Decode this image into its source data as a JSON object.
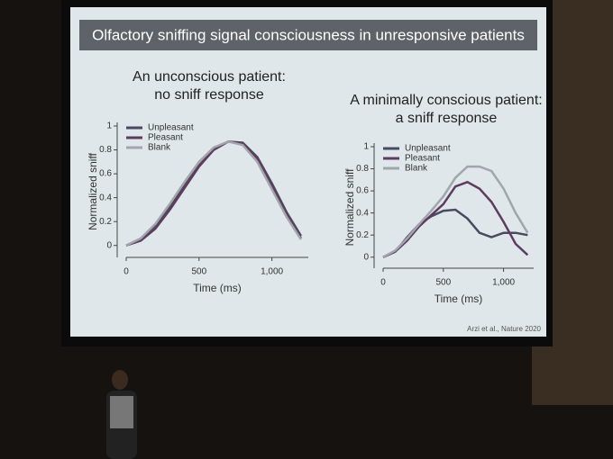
{
  "slide": {
    "title": "Olfactory sniffing signal consciousness in unresponsive patients",
    "citation": "Arzi et al., Nature 2020"
  },
  "chart_data": [
    {
      "type": "line",
      "title": [
        "An unconscious patient:",
        "no sniff response"
      ],
      "x_label": "Time (ms)",
      "y_label": "Normalized sniff",
      "x": [
        0,
        100,
        200,
        300,
        400,
        500,
        600,
        700,
        800,
        900,
        1000,
        1100,
        1200
      ],
      "series": [
        {
          "name": "Unpleasant",
          "color": "#4a4a5e",
          "values": [
            0,
            0.05,
            0.16,
            0.32,
            0.5,
            0.67,
            0.8,
            0.87,
            0.86,
            0.74,
            0.52,
            0.28,
            0.08
          ]
        },
        {
          "name": "Pleasant",
          "color": "#5e3c60",
          "values": [
            0,
            0.04,
            0.14,
            0.3,
            0.48,
            0.66,
            0.8,
            0.87,
            0.85,
            0.73,
            0.5,
            0.26,
            0.06
          ]
        },
        {
          "name": "Blank",
          "color": "#a3a5ad",
          "values": [
            0,
            0.06,
            0.18,
            0.35,
            0.53,
            0.7,
            0.82,
            0.87,
            0.84,
            0.7,
            0.47,
            0.24,
            0.05
          ]
        }
      ],
      "xlim": [
        0,
        1250
      ],
      "ylim": [
        -0.1,
        1
      ],
      "xticks": [
        0,
        500,
        {
          "value": 1000,
          "label": "1,000"
        }
      ],
      "yticks": [
        0,
        0.2,
        0.4,
        0.6,
        0.8,
        1
      ]
    },
    {
      "type": "line",
      "title": [
        "A minimally conscious patient:",
        "a sniff response"
      ],
      "x_label": "Time (ms)",
      "y_label": "Normalized sniff",
      "x": [
        0,
        100,
        200,
        300,
        400,
        500,
        600,
        700,
        800,
        900,
        1000,
        1100,
        1200
      ],
      "series": [
        {
          "name": "Unpleasant",
          "color": "#4a4a5e",
          "values": [
            0,
            0.05,
            0.18,
            0.3,
            0.37,
            0.42,
            0.43,
            0.35,
            0.22,
            0.18,
            0.22,
            0.22,
            0.2
          ]
        },
        {
          "name": "Pleasant",
          "color": "#5e3c60",
          "values": [
            0,
            0.05,
            0.15,
            0.28,
            0.38,
            0.48,
            0.64,
            0.68,
            0.62,
            0.5,
            0.32,
            0.12,
            0.02
          ]
        },
        {
          "name": "Blank",
          "color": "#a3a5ad",
          "values": [
            0,
            0.06,
            0.17,
            0.3,
            0.42,
            0.55,
            0.72,
            0.82,
            0.82,
            0.78,
            0.62,
            0.4,
            0.22
          ]
        }
      ],
      "xlim": [
        0,
        1250
      ],
      "ylim": [
        -0.1,
        1
      ],
      "xticks": [
        0,
        500,
        {
          "value": 1000,
          "label": "1,000"
        }
      ],
      "yticks": [
        0,
        0.2,
        0.4,
        0.6,
        0.8,
        1
      ]
    }
  ]
}
